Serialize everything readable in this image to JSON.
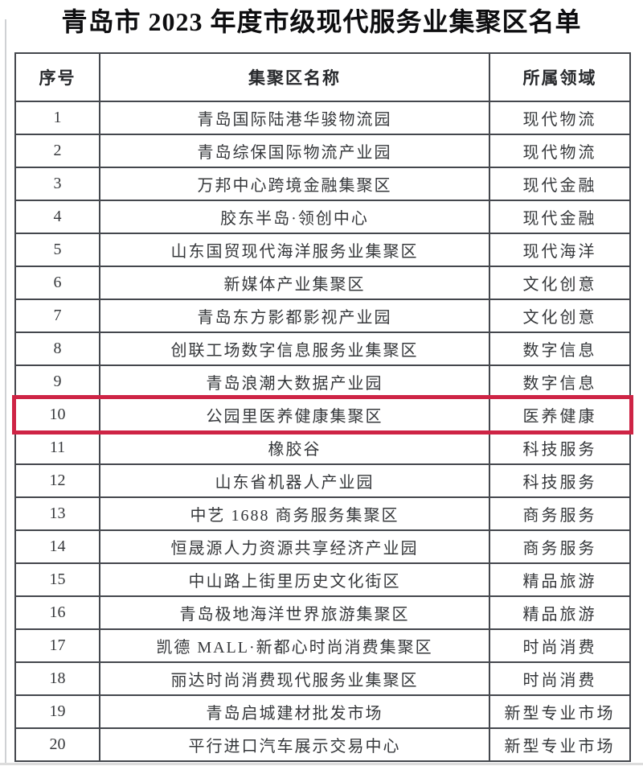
{
  "page": {
    "title": "青岛市 2023 年度市级现代服务业集聚区名单"
  },
  "table": {
    "columns": [
      "序号",
      "集聚区名称",
      "所属领域"
    ],
    "highlight_row_index": 9,
    "highlight_color": "#ce2445",
    "border_color": "#44474d",
    "rows": [
      {
        "no": "1",
        "name": "青岛国际陆港华骏物流园",
        "field": "现代物流"
      },
      {
        "no": "2",
        "name": "青岛综保国际物流产业园",
        "field": "现代物流"
      },
      {
        "no": "3",
        "name": "万邦中心跨境金融集聚区",
        "field": "现代金融"
      },
      {
        "no": "4",
        "name": "胶东半岛·领创中心",
        "field": "现代金融"
      },
      {
        "no": "5",
        "name": "山东国贸现代海洋服务业集聚区",
        "field": "现代海洋"
      },
      {
        "no": "6",
        "name": "新媒体产业集聚区",
        "field": "文化创意"
      },
      {
        "no": "7",
        "name": "青岛东方影都影视产业园",
        "field": "文化创意"
      },
      {
        "no": "8",
        "name": "创联工场数字信息服务业集聚区",
        "field": "数字信息"
      },
      {
        "no": "9",
        "name": "青岛浪潮大数据产业园",
        "field": "数字信息"
      },
      {
        "no": "10",
        "name": "公园里医养健康集聚区",
        "field": "医养健康"
      },
      {
        "no": "11",
        "name": "橡胶谷",
        "field": "科技服务"
      },
      {
        "no": "12",
        "name": "山东省机器人产业园",
        "field": "科技服务"
      },
      {
        "no": "13",
        "name": "中艺 1688 商务服务集聚区",
        "field": "商务服务"
      },
      {
        "no": "14",
        "name": "恒晟源人力资源共享经济产业园",
        "field": "商务服务"
      },
      {
        "no": "15",
        "name": "中山路上街里历史文化街区",
        "field": "精品旅游"
      },
      {
        "no": "16",
        "name": "青岛极地海洋世界旅游集聚区",
        "field": "精品旅游"
      },
      {
        "no": "17",
        "name": "凯德 MALL·新都心时尚消费集聚区",
        "field": "时尚消费"
      },
      {
        "no": "18",
        "name": "丽达时尚消费现代服务业集聚区",
        "field": "时尚消费"
      },
      {
        "no": "19",
        "name": "青岛启城建材批发市场",
        "field": "新型专业市场"
      },
      {
        "no": "20",
        "name": "平行进口汽车展示交易中心",
        "field": "新型专业市场"
      }
    ]
  }
}
